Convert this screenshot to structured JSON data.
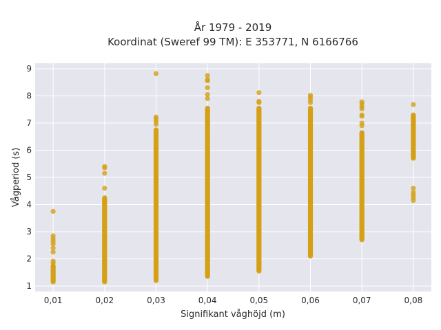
{
  "chart_data": {
    "type": "scatter",
    "title_line1": "År 1979 - 2019",
    "title_line2": "Koordinat (Sweref 99 TM): E 353771, N 6166766",
    "xlabel": "Signifikant våghöjd (m)",
    "ylabel": "Vågperiod (s)",
    "x_ticks": [
      0.01,
      0.02,
      0.03,
      0.04,
      0.05,
      0.06,
      0.07,
      0.08
    ],
    "x_tick_labels": [
      "0,01",
      "0,02",
      "0,03",
      "0,04",
      "0,05",
      "0,06",
      "0,07",
      "0,08"
    ],
    "y_ticks": [
      1,
      2,
      3,
      4,
      5,
      6,
      7,
      8,
      9
    ],
    "y_tick_labels": [
      "1",
      "2",
      "3",
      "4",
      "5",
      "6",
      "7",
      "8",
      "9"
    ],
    "xlim": [
      0.0065,
      0.0835
    ],
    "ylim": [
      0.8,
      9.2
    ],
    "grid": true,
    "legend": "none",
    "colors": {
      "point": "#d4a017",
      "plot_bg": "#e5e5ee",
      "grid": "#ffffff"
    },
    "series": [
      {
        "points": [
          {
            "x": 0.01,
            "range": [
              1.15,
              1.75
            ],
            "outliers": [
              1.85,
              1.92,
              2.25,
              2.4,
              2.55,
              2.65,
              2.75,
              2.85,
              3.75
            ]
          },
          {
            "x": 0.02,
            "range": [
              1.15,
              4.25
            ],
            "outliers": [
              4.6,
              5.15,
              5.35,
              5.4
            ]
          },
          {
            "x": 0.03,
            "range": [
              1.2,
              6.75
            ],
            "outliers": [
              6.95,
              7.05,
              7.15,
              7.22,
              8.82
            ]
          },
          {
            "x": 0.04,
            "range": [
              1.35,
              7.55
            ],
            "outliers": [
              7.9,
              8.05,
              8.3,
              8.55,
              8.6,
              8.75
            ]
          },
          {
            "x": 0.05,
            "range": [
              1.55,
              7.55
            ],
            "outliers": [
              7.75,
              7.8,
              8.12
            ]
          },
          {
            "x": 0.06,
            "range": [
              2.1,
              7.55
            ],
            "outliers": [
              7.75,
              7.85,
              7.95,
              8.02
            ]
          },
          {
            "x": 0.07,
            "range": [
              2.7,
              6.65
            ],
            "outliers": [
              6.9,
              7.0,
              7.25,
              7.3,
              7.52,
              7.6,
              7.7,
              7.78
            ]
          },
          {
            "x": 0.08,
            "range": [
              5.7,
              7.3
            ],
            "outliers": [
              4.15,
              4.25,
              4.35,
              4.45,
              4.6,
              7.68
            ]
          }
        ]
      }
    ]
  }
}
